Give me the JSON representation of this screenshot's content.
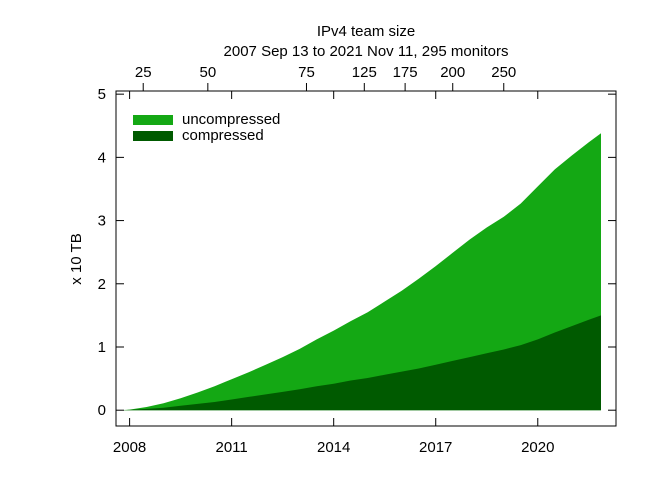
{
  "chart_data": {
    "type": "area",
    "title": "IPv4 team size",
    "subtitle": "2007 Sep 13 to 2021 Nov 11, 295 monitors",
    "xlabel": "",
    "ylabel": "x 10 TB",
    "xlim": [
      2007.6,
      2022.3
    ],
    "ylim": [
      -0.25,
      5.05
    ],
    "x_ticks": [
      2008,
      2011,
      2014,
      2017,
      2020
    ],
    "x_tick_labels": [
      "2008",
      "2011",
      "2014",
      "2017",
      "2020"
    ],
    "y_ticks": [
      0,
      1,
      2,
      3,
      4,
      5
    ],
    "y_tick_labels": [
      "0",
      "1",
      "2",
      "3",
      "4",
      "5"
    ],
    "top_axis": {
      "ticks": [
        {
          "label": "25",
          "year": 2008.4
        },
        {
          "label": "50",
          "year": 2010.3
        },
        {
          "label": "75",
          "year": 2013.2
        },
        {
          "label": "125",
          "year": 2014.9
        },
        {
          "label": "175",
          "year": 2016.1
        },
        {
          "label": "200",
          "year": 2017.5
        },
        {
          "label": "250",
          "year": 2019.0
        }
      ]
    },
    "legend_position": "top-left",
    "grid": false,
    "colors": {
      "uncompressed": "#14a814",
      "compressed": "#005a00"
    },
    "x": [
      2007.7,
      2008.0,
      2008.5,
      2009.0,
      2009.5,
      2010.0,
      2010.5,
      2011.0,
      2011.5,
      2012.0,
      2012.5,
      2013.0,
      2013.5,
      2014.0,
      2014.5,
      2015.0,
      2015.5,
      2016.0,
      2016.5,
      2017.0,
      2017.5,
      2018.0,
      2018.5,
      2019.0,
      2019.5,
      2020.0,
      2020.5,
      2021.0,
      2021.5,
      2021.86
    ],
    "series": [
      {
        "name": "uncompressed",
        "values": [
          0.0,
          0.01,
          0.05,
          0.11,
          0.19,
          0.28,
          0.38,
          0.49,
          0.6,
          0.72,
          0.84,
          0.97,
          1.12,
          1.26,
          1.41,
          1.55,
          1.72,
          1.89,
          2.08,
          2.28,
          2.49,
          2.7,
          2.89,
          3.06,
          3.27,
          3.54,
          3.81,
          4.03,
          4.24,
          4.38
        ]
      },
      {
        "name": "compressed",
        "values": [
          0.0,
          0.005,
          0.02,
          0.04,
          0.07,
          0.1,
          0.13,
          0.17,
          0.21,
          0.25,
          0.29,
          0.33,
          0.38,
          0.42,
          0.47,
          0.51,
          0.56,
          0.61,
          0.66,
          0.72,
          0.78,
          0.84,
          0.9,
          0.96,
          1.03,
          1.12,
          1.23,
          1.33,
          1.43,
          1.5
        ]
      }
    ]
  }
}
